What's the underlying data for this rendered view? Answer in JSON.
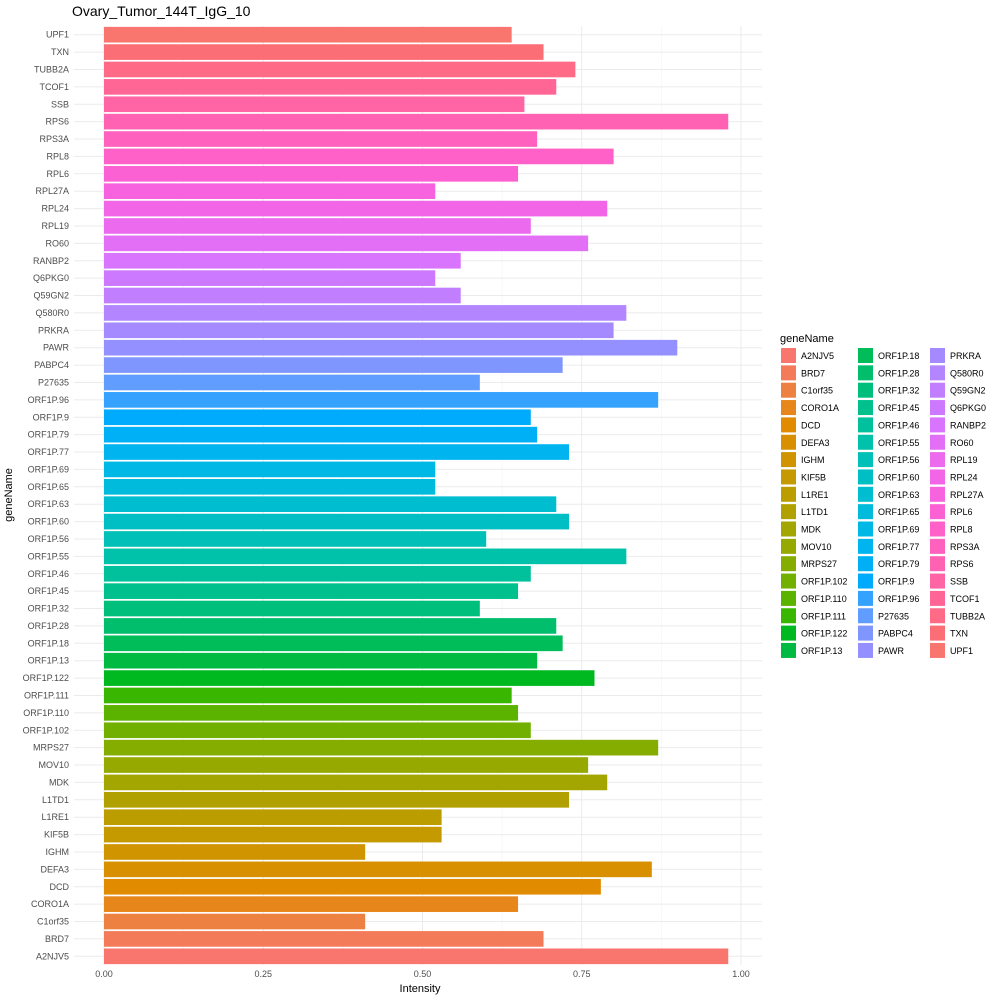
{
  "chart_data": {
    "type": "bar",
    "orientation": "horizontal",
    "title": "Ovary_Tumor_144T_IgG_10",
    "xlabel": "Intensity",
    "ylabel": "geneName",
    "xlim": [
      0,
      1
    ],
    "x_ticks": [
      "0.00",
      "0.25",
      "0.50",
      "0.75",
      "1.00"
    ],
    "grid": true,
    "legend_title": "geneName",
    "legend_position": "right",
    "categories": [
      "A2NJV5",
      "BRD7",
      "C1orf35",
      "CORO1A",
      "DCD",
      "DEFA3",
      "IGHM",
      "KIF5B",
      "L1RE1",
      "L1TD1",
      "MDK",
      "MOV10",
      "MRPS27",
      "ORF1P.102",
      "ORF1P.110",
      "ORF1P.111",
      "ORF1P.122",
      "ORF1P.13",
      "ORF1P.18",
      "ORF1P.28",
      "ORF1P.32",
      "ORF1P.45",
      "ORF1P.46",
      "ORF1P.55",
      "ORF1P.56",
      "ORF1P.60",
      "ORF1P.63",
      "ORF1P.65",
      "ORF1P.69",
      "ORF1P.77",
      "ORF1P.79",
      "ORF1P.9",
      "ORF1P.96",
      "P27635",
      "PABPC4",
      "PAWR",
      "PRKRA",
      "Q580R0",
      "Q59GN2",
      "Q6PKG0",
      "RANBP2",
      "RO60",
      "RPL19",
      "RPL24",
      "RPL27A",
      "RPL6",
      "RPL8",
      "RPS3A",
      "RPS6",
      "SSB",
      "TCOF1",
      "TUBB2A",
      "TXN",
      "UPF1"
    ],
    "values": [
      0.98,
      0.69,
      0.41,
      0.65,
      0.78,
      0.86,
      0.41,
      0.53,
      0.53,
      0.73,
      0.79,
      0.76,
      0.87,
      0.67,
      0.65,
      0.64,
      0.77,
      0.68,
      0.72,
      0.71,
      0.59,
      0.65,
      0.67,
      0.82,
      0.6,
      0.73,
      0.71,
      0.52,
      0.52,
      0.73,
      0.68,
      0.67,
      0.87,
      0.59,
      0.72,
      0.9,
      0.8,
      0.82,
      0.56,
      0.52,
      0.56,
      0.76,
      0.67,
      0.79,
      0.52,
      0.65,
      0.8,
      0.68,
      0.98,
      0.66,
      0.71,
      0.74,
      0.69,
      0.64
    ],
    "colors": [
      "#F8766D",
      "#F37B59",
      "#ED8141",
      "#E7861B",
      "#E08B00",
      "#D89000",
      "#CF9400",
      "#C59900",
      "#BB9D00",
      "#B0A100",
      "#A3A500",
      "#95A900",
      "#85AD00",
      "#72B000",
      "#5BB300",
      "#39B600",
      "#00B81F",
      "#00BA42",
      "#00BC59",
      "#00BE6C",
      "#00BF7D",
      "#00C08D",
      "#00C19C",
      "#00C1AA",
      "#00C0B8",
      "#00BFC4",
      "#00BDD0",
      "#00BBDB",
      "#00B8E5",
      "#00B4EF",
      "#00B0F6",
      "#00ABFD",
      "#35A2FF",
      "#619CFF",
      "#7F96FF",
      "#9590FF",
      "#A58AFF",
      "#B385FF",
      "#C17FFF",
      "#CD79FF",
      "#D874FD",
      "#E36FF6",
      "#EB6AEE",
      "#F265E7",
      "#F763DE",
      "#FC61D4",
      "#FF61C9",
      "#FF61BE",
      "#FF62B2",
      "#FF64A4",
      "#FF6696",
      "#FF6A86",
      "#FC6E76",
      "#F8766D"
    ]
  }
}
